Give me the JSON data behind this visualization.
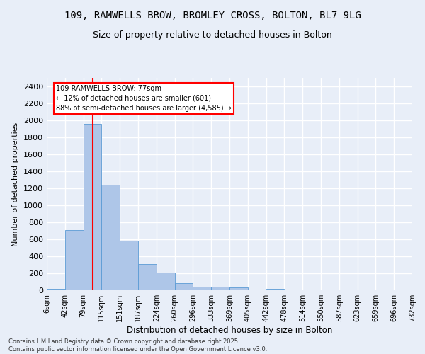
{
  "title": "109, RAMWELLS BROW, BROMLEY CROSS, BOLTON, BL7 9LG",
  "subtitle": "Size of property relative to detached houses in Bolton",
  "xlabel": "Distribution of detached houses by size in Bolton",
  "ylabel": "Number of detached properties",
  "footer": "Contains HM Land Registry data © Crown copyright and database right 2025.\nContains public sector information licensed under the Open Government Licence v3.0.",
  "bar_values": [
    20,
    710,
    1960,
    1240,
    580,
    310,
    205,
    80,
    40,
    45,
    35,
    5,
    20,
    5,
    5,
    5,
    5,
    5,
    0,
    0
  ],
  "bin_labels": [
    "6sqm",
    "42sqm",
    "79sqm",
    "115sqm",
    "151sqm",
    "187sqm",
    "224sqm",
    "260sqm",
    "296sqm",
    "333sqm",
    "369sqm",
    "405sqm",
    "442sqm",
    "478sqm",
    "514sqm",
    "550sqm",
    "587sqm",
    "623sqm",
    "659sqm",
    "696sqm",
    "732sqm"
  ],
  "bar_color": "#aec6e8",
  "bar_edge_color": "#5b9bd5",
  "red_line_bin": 2,
  "annotation_title": "109 RAMWELLS BROW: 77sqm",
  "annotation_line1": "← 12% of detached houses are smaller (601)",
  "annotation_line2": "88% of semi-detached houses are larger (4,585) →",
  "ylim": [
    0,
    2500
  ],
  "yticks": [
    0,
    200,
    400,
    600,
    800,
    1000,
    1200,
    1400,
    1600,
    1800,
    2000,
    2200,
    2400
  ],
  "bg_color": "#e8eef8",
  "grid_color": "#ffffff",
  "title_fontsize": 10,
  "subtitle_fontsize": 9,
  "footer_fontsize": 6
}
